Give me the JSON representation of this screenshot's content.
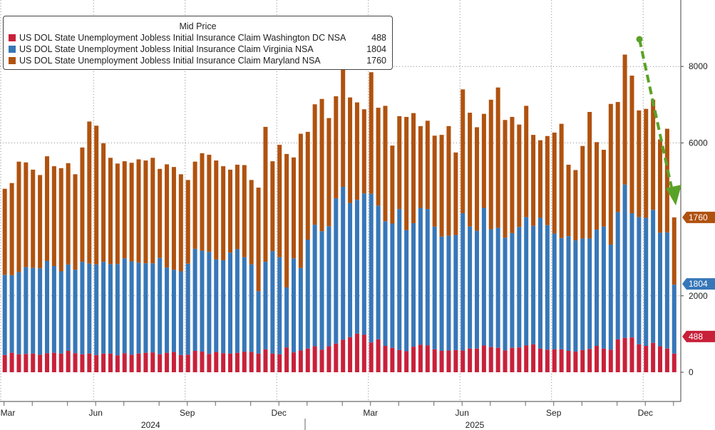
{
  "chart_data": {
    "type": "bar",
    "stacked": true,
    "title": "Mid Price",
    "xlabel": "",
    "ylabel": "",
    "ylim": [
      -300,
      9600
    ],
    "yticks": [
      0,
      2000,
      6000,
      8000
    ],
    "ytick_labels": [
      "0",
      "2000",
      "6000",
      "8000"
    ],
    "x_tick_labels": [
      "Mar",
      "Jun",
      "Sep",
      "Dec",
      "Mar",
      "Jun",
      "Sep",
      "Dec"
    ],
    "x_tick_weeks": [
      0,
      13,
      26,
      39,
      52,
      65,
      78,
      91
    ],
    "year_labels": [
      "2024",
      "2025"
    ],
    "year_label_weeks": [
      21,
      67
    ],
    "series": [
      {
        "name": "US DOL State Unemployment Jobless Initial Insurance Claim Washington DC NSA",
        "last_value": "488",
        "color": "#c8213a",
        "values": [
          450,
          510,
          470,
          480,
          490,
          460,
          500,
          510,
          490,
          560,
          500,
          470,
          490,
          450,
          490,
          490,
          440,
          500,
          460,
          490,
          510,
          520,
          470,
          510,
          530,
          450,
          460,
          560,
          540,
          480,
          530,
          500,
          490,
          510,
          540,
          530,
          490,
          600,
          490,
          470,
          650,
          520,
          570,
          620,
          680,
          590,
          680,
          750,
          850,
          920,
          1010,
          980,
          780,
          860,
          690,
          640,
          580,
          550,
          670,
          720,
          700,
          600,
          560,
          570,
          580,
          570,
          620,
          620,
          700,
          660,
          640,
          570,
          640,
          650,
          700,
          730,
          620,
          590,
          600,
          600,
          560,
          540,
          580,
          610,
          690,
          620,
          590,
          860,
          900,
          910,
          730,
          690,
          770,
          680,
          620,
          488
        ],
        "color_fill_hex": "#c8213a"
      },
      {
        "name": "US DOL State Unemployment Jobless Initial Insurance Claim Virginia NSA",
        "last_value": "1804",
        "color": "#3777b8",
        "values": [
          2100,
          2030,
          2150,
          2270,
          2240,
          2260,
          2410,
          2270,
          2150,
          2260,
          2180,
          2420,
          2350,
          2370,
          2400,
          2340,
          2390,
          2480,
          2440,
          2380,
          2340,
          2330,
          2520,
          2230,
          2150,
          2190,
          2380,
          2670,
          2640,
          2670,
          2420,
          2430,
          2640,
          2710,
          2470,
          2290,
          1630,
          2290,
          2680,
          2540,
          1570,
          2460,
          2160,
          2850,
          3180,
          3100,
          3140,
          3800,
          4000,
          3510,
          3500,
          3700,
          3890,
          3500,
          3260,
          3250,
          3690,
          3170,
          3230,
          3580,
          3570,
          3210,
          2990,
          3000,
          3010,
          3590,
          3190,
          3080,
          3600,
          3080,
          3140,
          2950,
          3000,
          3150,
          3360,
          3100,
          3420,
          3260,
          3030,
          2910,
          3000,
          2910,
          2920,
          2890,
          3040,
          3190,
          2750,
          3330,
          4010,
          3250,
          3330,
          3350,
          3480,
          2970,
          3040,
          1804
        ],
        "color_fill_hex": "#3777b8"
      },
      {
        "name": "US DOL State Unemployment Jobless Initial Insurance Claim Maryland NSA",
        "last_value": "1760",
        "color": "#b0520f",
        "values": [
          2250,
          2410,
          2890,
          2740,
          2570,
          2440,
          2740,
          2610,
          2700,
          2650,
          2500,
          2990,
          3720,
          3630,
          3100,
          2780,
          2630,
          2540,
          2580,
          2700,
          2690,
          2760,
          2330,
          2700,
          2690,
          2540,
          2190,
          2280,
          2550,
          2540,
          2590,
          2460,
          2170,
          2210,
          2410,
          2210,
          2710,
          3530,
          2350,
          2940,
          3490,
          2640,
          3510,
          2820,
          3150,
          3460,
          2830,
          2670,
          3530,
          2760,
          2550,
          2200,
          3180,
          2560,
          3020,
          2040,
          2430,
          2960,
          2880,
          2140,
          2310,
          2380,
          2660,
          2870,
          2160,
          3240,
          2980,
          2710,
          2460,
          3390,
          3670,
          3080,
          3040,
          2680,
          2910,
          2380,
          2030,
          2330,
          2640,
          2990,
          1870,
          1840,
          2420,
          3310,
          2290,
          2010,
          3680,
          2880,
          3400,
          3600,
          2790,
          2850,
          2880,
          2440,
          2710,
          1760
        ],
        "color_fill_hex": "#b0520f"
      }
    ],
    "annotation": "green dashed arrow indicating decline",
    "annotation_color": "#5aa227"
  }
}
